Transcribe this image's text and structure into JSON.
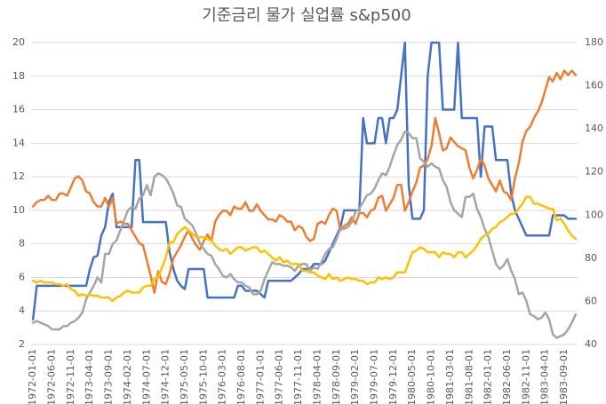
{
  "chart_data": {
    "type": "line",
    "title": "기준금리 물가 실업률 s&p500",
    "categories": [
      "1972-01-01",
      null,
      null,
      null,
      null,
      "1972-06-01",
      null,
      null,
      null,
      null,
      "1972-11-01",
      null,
      null,
      null,
      null,
      "1973-04-01",
      null,
      null,
      null,
      null,
      "1973-09-01",
      null,
      null,
      null,
      null,
      "1974-02-01",
      null,
      null,
      null,
      null,
      "1974-07-01",
      null,
      null,
      null,
      null,
      "1974-12-01",
      null,
      null,
      null,
      null,
      "1975-05-01",
      null,
      null,
      null,
      null,
      "1975-10-01",
      null,
      null,
      null,
      null,
      "1976-03-01",
      null,
      null,
      null,
      null,
      "1976-08-01",
      null,
      null,
      null,
      null,
      "1977-01-01",
      null,
      null,
      null,
      null,
      "1977-06-01",
      null,
      null,
      null,
      null,
      "1977-11-01",
      null,
      null,
      null,
      null,
      "1978-04-01",
      null,
      null,
      null,
      null,
      "1978-09-01",
      null,
      null,
      null,
      null,
      "1979-02-01",
      null,
      null,
      null,
      null,
      "1979-07-01",
      null,
      null,
      null,
      null,
      "1979-12-01",
      null,
      null,
      null,
      null,
      "1980-05-01",
      null,
      null,
      null,
      null,
      "1980-10-01",
      null,
      null,
      null,
      null,
      "1981-03-01",
      null,
      null,
      null,
      null,
      "1981-08-01",
      null,
      null,
      null,
      null,
      "1982-01-01",
      null,
      null,
      null,
      null,
      "1982-06-01",
      null,
      null,
      null,
      null,
      "1982-11-01",
      null,
      null,
      null,
      null,
      "1983-04-01",
      null,
      null,
      null,
      null,
      "1983-09-01",
      null,
      null,
      null
    ],
    "series": [
      {
        "color": "#4472c4",
        "values": [
          3.5,
          5.5,
          5.5,
          5.5,
          5.5,
          5.5,
          5.5,
          5.5,
          5.5,
          5.5,
          5.5,
          5.5,
          5.5,
          5.5,
          5.5,
          6.5,
          7.2,
          7.3,
          8.5,
          9,
          10.5,
          11,
          9,
          9,
          9,
          9,
          9,
          13,
          13,
          9.3,
          9.3,
          9.3,
          9.3,
          9.3,
          9.3,
          9.3,
          7.5,
          6.5,
          5.8,
          5.5,
          5.3,
          6.5,
          6.5,
          6.5,
          6.5,
          6.5,
          4.8,
          4.8,
          4.8,
          4.8,
          4.8,
          4.8,
          4.8,
          4.8,
          5.5,
          5.5,
          5.2,
          5.2,
          5.2,
          5.2,
          5,
          4.8,
          5.8,
          5.8,
          5.8,
          5.8,
          5.8,
          5.8,
          5.8,
          6,
          6.2,
          6.5,
          6.5,
          6.5,
          6.8,
          6.8,
          6.8,
          7,
          7.5,
          8,
          8.5,
          9,
          10,
          10,
          10,
          10,
          10,
          15.5,
          14,
          14,
          14,
          15.5,
          15.5,
          14,
          15.5,
          15.5,
          16,
          18,
          20,
          11.5,
          9.5,
          9.5,
          9.5,
          10,
          18,
          20,
          20,
          20,
          16,
          16,
          16,
          16,
          20,
          15.5,
          15.5,
          15.5,
          15.5,
          15.5,
          12,
          15,
          15,
          15,
          13,
          13,
          13,
          13,
          11,
          10,
          9.5,
          9,
          8.5,
          8.5,
          8.5,
          8.5,
          8.5,
          8.5,
          8.5,
          9.7,
          9.7,
          9.7,
          9.7,
          9.5,
          9.5,
          9.5
        ]
      },
      {
        "color": "#ed7d31",
        "axis": "y2",
        "values": [
          104,
          106,
          107,
          107,
          109,
          107,
          107,
          110,
          110,
          109,
          113,
          117,
          118,
          116,
          111,
          110,
          106,
          104,
          104,
          108,
          104,
          108,
          96,
          97,
          96,
          96,
          93,
          90,
          87,
          86,
          79,
          72,
          64,
          74,
          69,
          68,
          73,
          80,
          83,
          86,
          90,
          93,
          89,
          86,
          84,
          88,
          91,
          88,
          97,
          100,
          102,
          102,
          100,
          104,
          103,
          103,
          106,
          102,
          102,
          105,
          102,
          100,
          98,
          98,
          97,
          100,
          99,
          97,
          97,
          93,
          95,
          94,
          90,
          88,
          89,
          96,
          97,
          96,
          100,
          103,
          102,
          93,
          95,
          96,
          99,
          96,
          101,
          101,
          99,
          102,
          103,
          108,
          109,
          102,
          105,
          108,
          114,
          114,
          102,
          106,
          111,
          115,
          122,
          123,
          126,
          132,
          145,
          138,
          130,
          131,
          136,
          134,
          132,
          131,
          130,
          122,
          117,
          121,
          126,
          123,
          117,
          114,
          111,
          116,
          111,
          110,
          107,
          117,
          124,
          134,
          139,
          141,
          145,
          148,
          152,
          158,
          164,
          162,
          166,
          163,
          167,
          165,
          167,
          165
        ]
      },
      {
        "color": "#a5a5a5",
        "values": [
          3.3,
          3.4,
          3.3,
          3.2,
          3.1,
          2.9,
          2.9,
          2.9,
          3.1,
          3.1,
          3.3,
          3.4,
          3.6,
          3.9,
          4.7,
          5.1,
          5.5,
          6,
          5.7,
          7.4,
          7.4,
          8,
          8.2,
          8.8,
          9.4,
          10,
          10.2,
          10.1,
          10.7,
          10.9,
          11.5,
          10.9,
          12,
          12.2,
          12.1,
          11.9,
          11.5,
          11,
          10.3,
          10.2,
          9.5,
          9.3,
          9.1,
          8.6,
          8,
          7.7,
          7.4,
          7.3,
          6.8,
          6.5,
          6.1,
          6.0,
          6.2,
          5.9,
          5.7,
          5.7,
          5.5,
          5.4,
          5.0,
          5.0,
          5.2,
          5.9,
          6.4,
          6.9,
          6.8,
          6.8,
          6.7,
          6.7,
          6.6,
          6.4,
          6.7,
          6.8,
          6.8,
          6.4,
          6.6,
          6.5,
          6.9,
          7.4,
          7.7,
          7.8,
          8.3,
          8.9,
          8.9,
          9.0,
          9.3,
          9.9,
          10.1,
          10.5,
          10.9,
          11,
          11.3,
          11.8,
          12.2,
          12.1,
          12.6,
          13.3,
          13.9,
          14.2,
          14.7,
          14.6,
          14.3,
          14.3,
          13.1,
          12.9,
          12.6,
          12.8,
          12.6,
          12.5,
          11.8,
          11.4,
          10.5,
          10.0,
          9.8,
          9.6,
          10.8,
          10.8,
          11.0,
          10.1,
          9.6,
          8.9,
          8.4,
          7.6,
          6.8,
          6.5,
          6.7,
          7.1,
          6.4,
          5.9,
          5.0,
          5.1,
          4.6,
          3.8,
          3.7,
          3.5,
          3.6,
          3.9,
          3.5,
          2.6,
          2.4,
          2.5,
          2.6,
          2.9,
          3.3,
          3.8
        ]
      },
      {
        "color": "#ffc000",
        "values": [
          5.8,
          5.7,
          5.8,
          5.7,
          5.7,
          5.7,
          5.6,
          5.6,
          5.5,
          5.6,
          5.3,
          5.2,
          4.9,
          5.0,
          4.9,
          5.0,
          4.9,
          4.9,
          4.8,
          4.8,
          4.8,
          4.6,
          4.8,
          4.9,
          5.1,
          5.2,
          5.1,
          5.1,
          5.1,
          5.4,
          5.5,
          5.5,
          5.9,
          6.0,
          6.6,
          7.2,
          8.1,
          8.1,
          8.6,
          8.8,
          9.0,
          8.8,
          8.6,
          8.4,
          8.4,
          8.4,
          8.3,
          8.2,
          7.9,
          7.7,
          7.6,
          7.7,
          7.4,
          7.6,
          7.8,
          7.8,
          7.6,
          7.7,
          7.8,
          7.8,
          7.5,
          7.6,
          7.4,
          7.2,
          7.0,
          7.2,
          6.9,
          7.0,
          6.8,
          6.8,
          6.8,
          6.4,
          6.4,
          6.3,
          6.3,
          6.1,
          6.0,
          5.9,
          6.2,
          5.9,
          6.0,
          5.8,
          5.9,
          6.0,
          5.9,
          5.9,
          5.8,
          5.8,
          5.6,
          5.7,
          5.7,
          6.0,
          5.9,
          6.0,
          5.9,
          6.0,
          6.3,
          6.3,
          6.3,
          6.9,
          7.5,
          7.6,
          7.8,
          7.7,
          7.5,
          7.5,
          7.5,
          7.2,
          7.5,
          7.4,
          7.4,
          7.2,
          7.5,
          7.5,
          7.2,
          7.4,
          7.6,
          7.9,
          8.3,
          8.5,
          8.6,
          8.9,
          9.0,
          9.3,
          9.4,
          9.6,
          9.8,
          9.8,
          10.1,
          10.4,
          10.8,
          10.8,
          10.4,
          10.4,
          10.3,
          10.2,
          10.1,
          10.1,
          9.4,
          9.5,
          9.2,
          8.8,
          8.5,
          8.3
        ]
      }
    ],
    "ylim": [
      2,
      20
    ],
    "yticks": [
      2,
      4,
      6,
      8,
      10,
      12,
      14,
      16,
      18,
      20
    ],
    "y2lim": [
      40,
      180
    ],
    "y2ticks": [
      40,
      60,
      80,
      100,
      120,
      140,
      160,
      180
    ],
    "grid": true
  }
}
